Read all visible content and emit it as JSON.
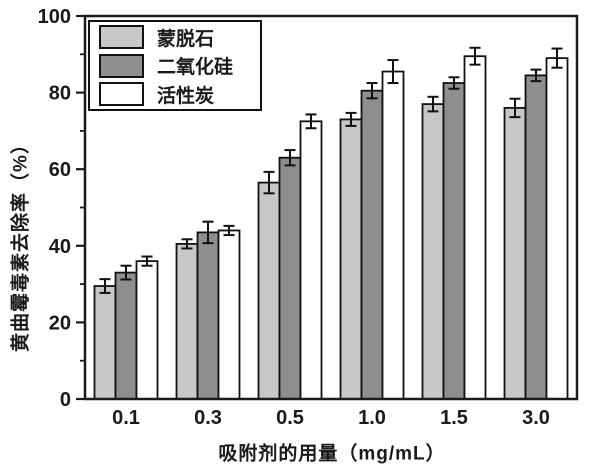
{
  "chart_data": {
    "type": "bar",
    "title": "",
    "xlabel": "吸附剂的用量（mg/mL）",
    "ylabel": "黄曲霉毒素去除率（%）",
    "categories": [
      "0.1",
      "0.3",
      "0.5",
      "1.0",
      "1.5",
      "3.0"
    ],
    "series": [
      {
        "name": "蒙脱石",
        "color": "#c7c7c7",
        "values": [
          29.5,
          40.5,
          56.5,
          73.0,
          77.0,
          76.0
        ],
        "errors": [
          1.8,
          1.2,
          2.8,
          1.7,
          1.9,
          2.4
        ]
      },
      {
        "name": "二氧化硅",
        "color": "#8e8e8e",
        "values": [
          33.0,
          43.5,
          63.0,
          80.5,
          82.5,
          84.5
        ],
        "errors": [
          1.8,
          2.8,
          2.0,
          2.0,
          1.5,
          1.5
        ]
      },
      {
        "name": "活性炭",
        "color": "#ffffff",
        "values": [
          36.0,
          44.0,
          72.5,
          85.5,
          89.5,
          89.0
        ],
        "errors": [
          1.2,
          1.2,
          1.8,
          3.0,
          2.2,
          2.5
        ]
      }
    ],
    "ylim": [
      0,
      100
    ],
    "yticks_major": [
      0,
      20,
      40,
      60,
      80,
      100
    ],
    "yticks_minor": [
      10,
      30,
      50,
      70,
      90
    ],
    "grid": false,
    "legend_position": "top-left",
    "colors": {
      "axis": "#1a1a1a",
      "bar_outline": "#111111",
      "error_bar": "#111111",
      "background": "#ffffff",
      "tick_label": "#1a1a1a"
    }
  }
}
